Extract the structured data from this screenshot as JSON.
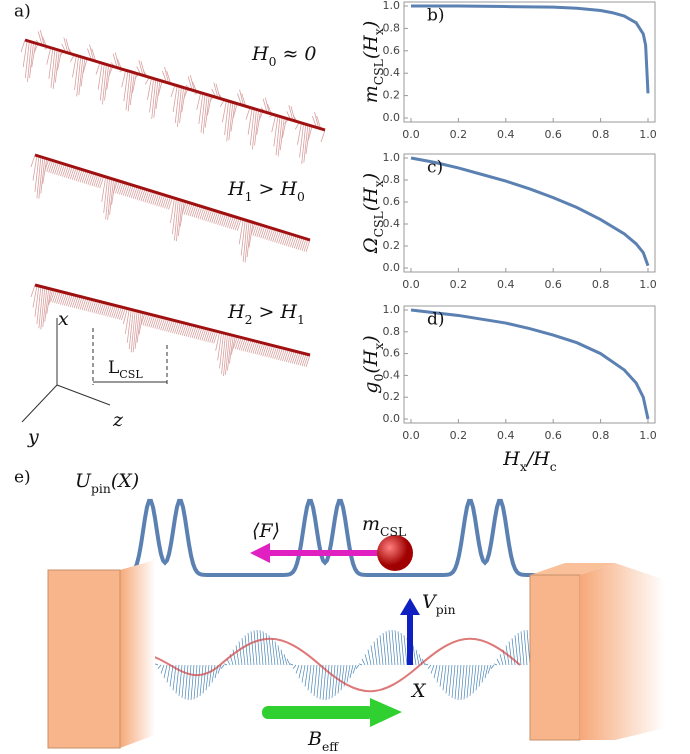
{
  "chart_data": [
    {
      "type": "line",
      "panel_label": "b)",
      "ylabel": [
        {
          "text": "m"
        },
        {
          "text": "CSL",
          "sub": true
        },
        {
          "text": "(H"
        },
        {
          "text": "x",
          "sub": true
        },
        {
          "text": ")"
        }
      ],
      "x": [
        0,
        0.2,
        0.4,
        0.6,
        0.7,
        0.8,
        0.85,
        0.9,
        0.95,
        0.98,
        0.99,
        1.0
      ],
      "series": [
        {
          "color": "#5b80b2",
          "values": [
            1,
            1,
            0.995,
            0.99,
            0.98,
            0.96,
            0.94,
            0.91,
            0.85,
            0.75,
            0.65,
            0.22
          ]
        }
      ],
      "xlim": [
        0,
        1
      ],
      "ylim": [
        0,
        1
      ],
      "xticks": [
        {
          "value": 0,
          "label": "0.0"
        },
        {
          "value": 0.2,
          "label": "0.2"
        },
        {
          "value": 0.4,
          "label": "0.4"
        },
        {
          "value": 0.6,
          "label": "0.6"
        },
        {
          "value": 0.8,
          "label": "0.8"
        },
        {
          "value": 1,
          "label": "1.0"
        }
      ],
      "yticks": [
        {
          "value": 0,
          "label": "0.0"
        },
        {
          "value": 0.2,
          "label": "0.2"
        },
        {
          "value": 0.4,
          "label": "0.4"
        },
        {
          "value": 0.6,
          "label": "0.6"
        },
        {
          "value": 0.8,
          "label": "0.8"
        },
        {
          "value": 1,
          "label": "1.0"
        }
      ]
    },
    {
      "type": "line",
      "panel_label": "c)",
      "ylabel": [
        {
          "text": "Ω"
        },
        {
          "text": "CSL",
          "sub": true
        },
        {
          "text": "(H"
        },
        {
          "text": "x",
          "sub": true
        },
        {
          "text": ")"
        }
      ],
      "x": [
        0,
        0.1,
        0.2,
        0.3,
        0.4,
        0.5,
        0.6,
        0.7,
        0.8,
        0.9,
        0.95,
        0.98,
        1.0
      ],
      "series": [
        {
          "color": "#5b80b2",
          "values": [
            1,
            0.96,
            0.91,
            0.85,
            0.79,
            0.72,
            0.64,
            0.55,
            0.44,
            0.31,
            0.22,
            0.14,
            0.02
          ]
        }
      ],
      "xlim": [
        0,
        1
      ],
      "ylim": [
        0,
        1
      ],
      "xticks": [
        {
          "value": 0,
          "label": "0.0"
        },
        {
          "value": 0.2,
          "label": "0.2"
        },
        {
          "value": 0.4,
          "label": "0.4"
        },
        {
          "value": 0.6,
          "label": "0.6"
        },
        {
          "value": 0.8,
          "label": "0.8"
        },
        {
          "value": 1,
          "label": "1.0"
        }
      ],
      "yticks": [
        {
          "value": 0,
          "label": "0.0"
        },
        {
          "value": 0.2,
          "label": "0.2"
        },
        {
          "value": 0.4,
          "label": "0.4"
        },
        {
          "value": 0.6,
          "label": "0.6"
        },
        {
          "value": 0.8,
          "label": "0.8"
        },
        {
          "value": 1,
          "label": "1.0"
        }
      ]
    },
    {
      "type": "line",
      "panel_label": "d)",
      "ylabel": [
        {
          "text": "g"
        },
        {
          "text": "0",
          "sub": true
        },
        {
          "text": "(H"
        },
        {
          "text": "x",
          "sub": true
        },
        {
          "text": ")"
        }
      ],
      "xlabel": [
        {
          "text": "H"
        },
        {
          "text": "x",
          "sub": true
        },
        {
          "text": "/H"
        },
        {
          "text": "c",
          "sub": true
        }
      ],
      "x": [
        0,
        0.2,
        0.4,
        0.5,
        0.6,
        0.7,
        0.8,
        0.9,
        0.95,
        0.98,
        1.0
      ],
      "series": [
        {
          "color": "#5b80b2",
          "values": [
            1,
            0.95,
            0.88,
            0.83,
            0.77,
            0.7,
            0.6,
            0.45,
            0.33,
            0.2,
            0
          ]
        }
      ],
      "xlim": [
        0,
        1
      ],
      "ylim": [
        0,
        1
      ],
      "xticks": [
        {
          "value": 0,
          "label": "0.0"
        },
        {
          "value": 0.2,
          "label": "0.2"
        },
        {
          "value": 0.4,
          "label": "0.4"
        },
        {
          "value": 0.6,
          "label": "0.6"
        },
        {
          "value": 0.8,
          "label": "0.8"
        },
        {
          "value": 1,
          "label": "1.0"
        }
      ],
      "yticks": [
        {
          "value": 0,
          "label": "0.0"
        },
        {
          "value": 0.2,
          "label": "0.2"
        },
        {
          "value": 0.4,
          "label": "0.4"
        },
        {
          "value": 0.6,
          "label": "0.6"
        },
        {
          "value": 0.8,
          "label": "0.8"
        },
        {
          "value": 1,
          "label": "1.0"
        }
      ]
    }
  ],
  "panel_a": {
    "label": "a)",
    "fields": [
      [
        {
          "text": "H"
        },
        {
          "text": "0",
          "sub": true
        },
        {
          "text": " ≈ 0"
        }
      ],
      [
        {
          "text": "H"
        },
        {
          "text": "1",
          "sub": true
        },
        {
          "text": " > H"
        },
        {
          "text": "0",
          "sub": true
        }
      ],
      [
        {
          "text": "H"
        },
        {
          "text": "2",
          "sub": true
        },
        {
          "text": " > H"
        },
        {
          "text": "1",
          "sub": true
        }
      ]
    ],
    "axes": [
      "x",
      "y",
      "z"
    ],
    "period": [
      {
        "text": "L"
      },
      {
        "text": "CSL",
        "sub": true
      }
    ]
  },
  "panel_e": {
    "label": "e)",
    "potential": [
      {
        "text": "U"
      },
      {
        "text": "pin",
        "sub": true
      },
      {
        "text": "(X)"
      }
    ],
    "force": [
      {
        "text": "⟨F⟩"
      }
    ],
    "mass": [
      {
        "text": "m"
      },
      {
        "text": "CSL",
        "sub": true
      }
    ],
    "pinning": [
      {
        "text": "V"
      },
      {
        "text": "pin",
        "sub": true
      }
    ],
    "coordinate": [
      {
        "text": "X"
      }
    ],
    "field": [
      {
        "text": "B"
      },
      {
        "text": "eff",
        "sub": true
      }
    ]
  }
}
